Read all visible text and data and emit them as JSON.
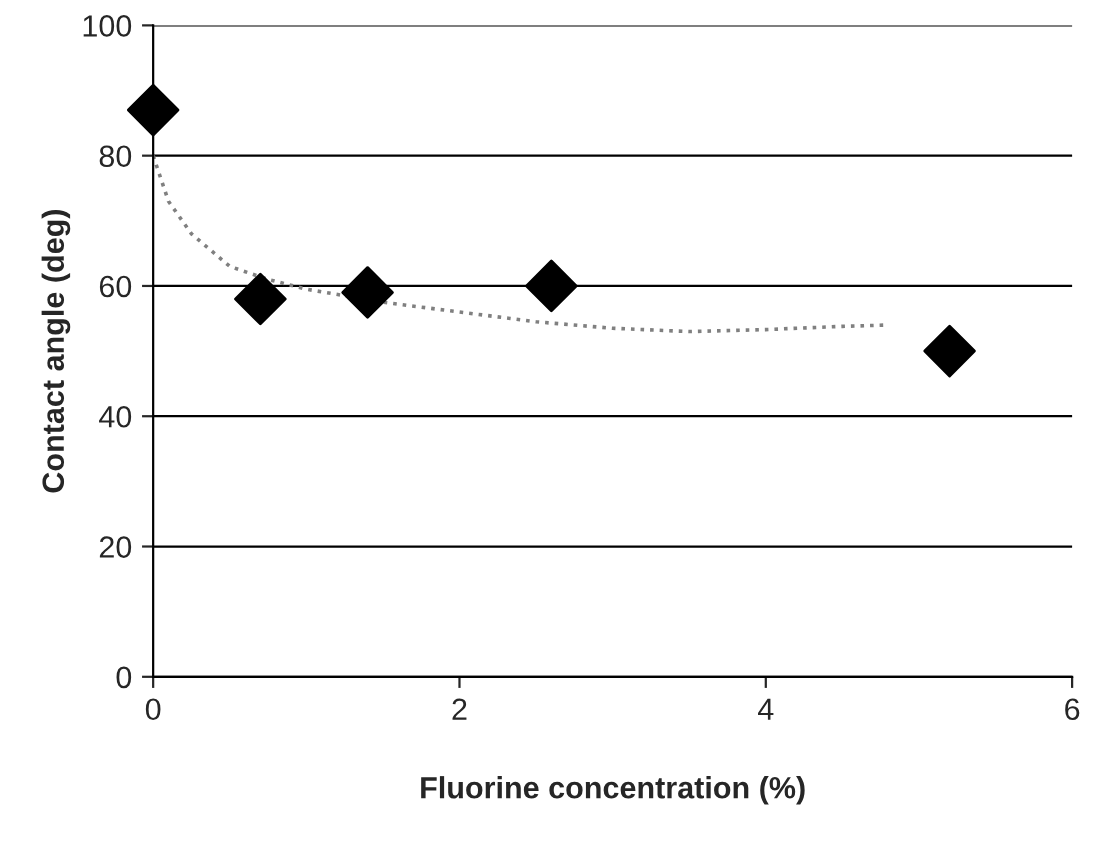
{
  "chart_data": {
    "type": "scatter",
    "xlabel": "Fluorine concentration (%)",
    "ylabel": "Contact angle (deg)",
    "xlim": [
      0,
      6
    ],
    "xticks": [
      0,
      2,
      4,
      6
    ],
    "ylim": [
      0,
      100
    ],
    "yticks": [
      0,
      20,
      40,
      60,
      80,
      100
    ],
    "grid": "y",
    "marker": "diamond",
    "series": [
      {
        "color": "#000000",
        "x": [
          0,
          0.7,
          1.4,
          2.6,
          5.2
        ],
        "values": [
          87,
          58,
          59,
          60,
          50
        ]
      },
      {
        "type": "line",
        "color": "#808080",
        "line_style": "dotted",
        "marker": "none",
        "x": [
          0,
          0.1,
          0.25,
          0.5,
          0.75,
          1.0,
          1.5,
          2.0,
          2.5,
          3.0,
          3.5,
          4.0,
          4.5,
          4.8
        ],
        "values": [
          80,
          73,
          68,
          63,
          61,
          59.5,
          57.5,
          56,
          54.5,
          53.5,
          53,
          53.3,
          53.8,
          54
        ]
      }
    ]
  }
}
